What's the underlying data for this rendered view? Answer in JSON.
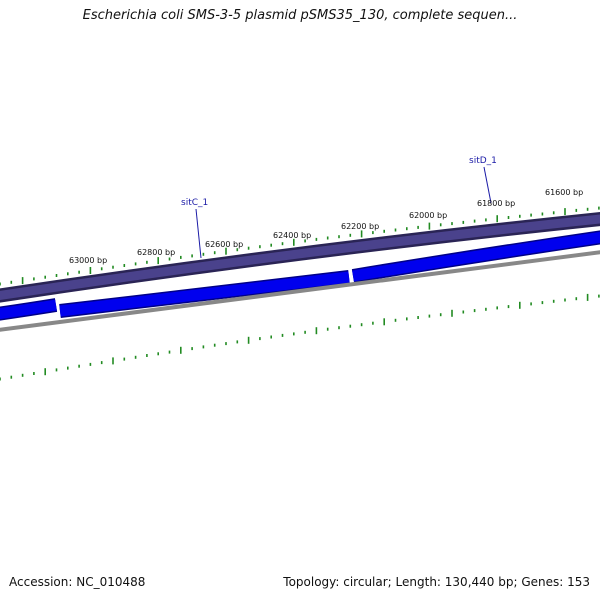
{
  "title": "Escherichia coli SMS-3-5 plasmid pSMS35_130, complete sequen...",
  "footer": {
    "accession": "Accession: NC_010488",
    "stats": "Topology: circular; Length: 130,440 bp; Genes: 153"
  },
  "ruler_labels": [
    "63000 bp",
    "62800 bp",
    "62600 bp",
    "62400 bp",
    "62200 bp",
    "62000 bp",
    "61800 bp",
    "61600 bp"
  ],
  "gene_labels": [
    "sitC_1",
    "sitD_1"
  ],
  "colors": {
    "outer_track": "#4a428c",
    "outer_track_edge": "#2a2455",
    "gene_fill": "#0000ee",
    "gene_edge": "#000088",
    "inner_ring": "#888888",
    "ticks": "#228b22",
    "gene_label": "#1a1aa6"
  }
}
